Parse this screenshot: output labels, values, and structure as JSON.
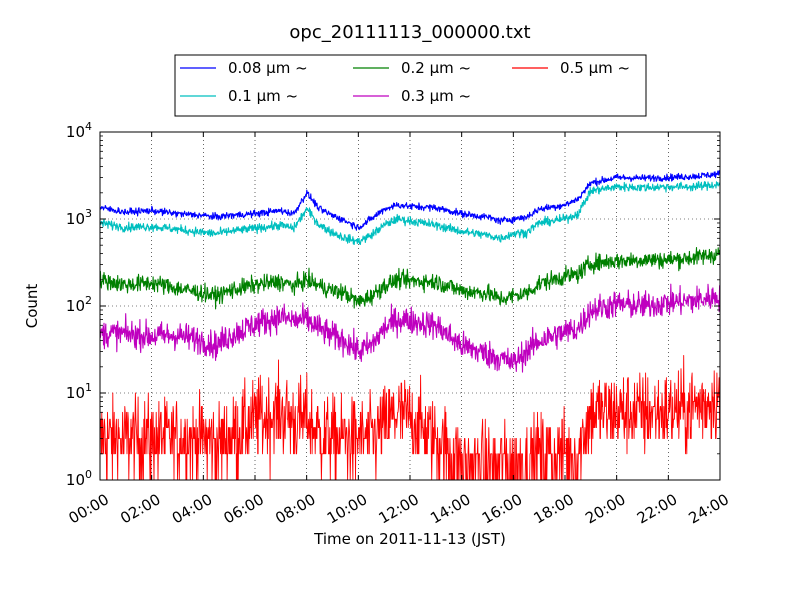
{
  "chart_data": {
    "type": "line",
    "title": "opc_20111113_000000.txt",
    "xlabel": "Time on 2011-11-13 (JST)",
    "ylabel": "Count",
    "y_scale": "log",
    "ylim": [
      1,
      10000
    ],
    "xlim": [
      "00:00",
      "24:00"
    ],
    "x_ticks": [
      "00:00",
      "02:00",
      "04:00",
      "06:00",
      "08:00",
      "10:00",
      "12:00",
      "14:00",
      "16:00",
      "18:00",
      "20:00",
      "22:00",
      "24:00"
    ],
    "y_ticks": [
      {
        "value": 1,
        "base": "10",
        "exp": "0"
      },
      {
        "value": 10,
        "base": "10",
        "exp": "1"
      },
      {
        "value": 100,
        "base": "10",
        "exp": "2"
      },
      {
        "value": 1000,
        "base": "10",
        "exp": "3"
      },
      {
        "value": 10000,
        "base": "10",
        "exp": "4"
      }
    ],
    "grid": true,
    "legend_position": "top-center",
    "x": [
      "00:00",
      "01:00",
      "02:00",
      "03:00",
      "04:00",
      "04:30",
      "05:00",
      "06:00",
      "07:00",
      "07:30",
      "08:00",
      "08:30",
      "09:00",
      "09:30",
      "10:00",
      "10:30",
      "11:00",
      "11:30",
      "12:00",
      "13:00",
      "14:00",
      "15:00",
      "15:30",
      "16:00",
      "16:30",
      "17:00",
      "18:00",
      "18:30",
      "19:00",
      "20:00",
      "21:00",
      "22:00",
      "23:00",
      "24:00"
    ],
    "series": [
      {
        "name": "0.08 μm ~",
        "color": "#0000ff",
        "noise": 0.02,
        "values": [
          1350,
          1200,
          1250,
          1150,
          1100,
          1050,
          1100,
          1150,
          1250,
          1150,
          2000,
          1300,
          1100,
          950,
          800,
          1000,
          1300,
          1450,
          1400,
          1350,
          1150,
          1050,
          950,
          1000,
          1050,
          1300,
          1450,
          1700,
          2600,
          3000,
          2950,
          3000,
          3100,
          3300
        ]
      },
      {
        "name": "0.1 μm ~",
        "color": "#00bfbf",
        "noise": 0.025,
        "values": [
          900,
          800,
          820,
          760,
          700,
          680,
          720,
          780,
          850,
          780,
          1300,
          850,
          700,
          600,
          550,
          650,
          850,
          1000,
          950,
          850,
          720,
          650,
          600,
          680,
          700,
          900,
          1000,
          1150,
          2100,
          2350,
          2300,
          2350,
          2350,
          2500
        ]
      },
      {
        "name": "0.2 μm ~",
        "color": "#008000",
        "noise": 0.05,
        "values": [
          200,
          175,
          185,
          160,
          140,
          130,
          150,
          175,
          190,
          170,
          200,
          170,
          150,
          140,
          110,
          130,
          170,
          200,
          195,
          190,
          150,
          140,
          120,
          130,
          140,
          180,
          220,
          230,
          310,
          330,
          340,
          340,
          360,
          400
        ]
      },
      {
        "name": "0.3 μm ~",
        "color": "#bf00bf",
        "noise": 0.08,
        "values": [
          48,
          48,
          45,
          46,
          40,
          35,
          45,
          62,
          75,
          68,
          70,
          55,
          45,
          40,
          30,
          35,
          55,
          70,
          68,
          60,
          35,
          28,
          25,
          22,
          30,
          40,
          50,
          55,
          90,
          105,
          100,
          110,
          115,
          130
        ]
      },
      {
        "name": "0.5 μm ~",
        "color": "#ff0000",
        "noise": 0.45,
        "values": [
          3,
          3,
          3,
          3,
          3,
          2.5,
          3,
          5,
          6,
          5,
          5,
          3.5,
          3,
          3,
          3,
          3,
          4,
          6,
          5,
          3,
          1.5,
          1.5,
          1.5,
          1.5,
          1.5,
          2,
          2,
          2,
          6,
          6,
          6,
          6,
          7,
          9
        ]
      }
    ]
  }
}
